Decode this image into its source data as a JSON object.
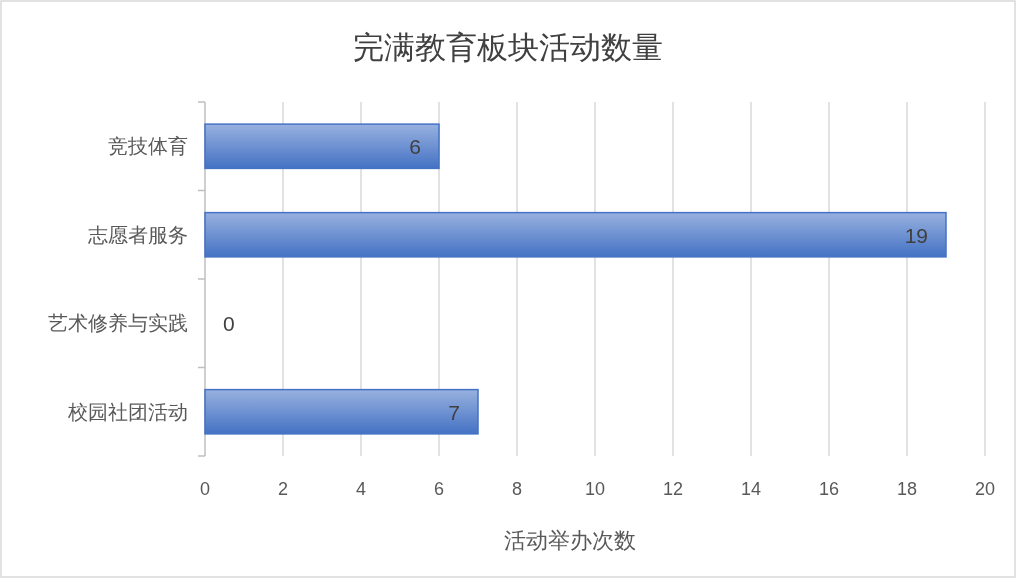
{
  "chart_data": {
    "type": "bar",
    "orientation": "horizontal",
    "title": "完满教育板块活动数量",
    "xlabel": "活动举办次数",
    "categories": [
      "竞技体育",
      "志愿者服务",
      "艺术修养与实践",
      "校园社团活动"
    ],
    "values": [
      6,
      19,
      0,
      7
    ],
    "color": "#4472c4",
    "xlim": [
      0,
      20
    ],
    "xticks": [
      0,
      2,
      4,
      6,
      8,
      10,
      12,
      14,
      16,
      18,
      20
    ],
    "grid": "x",
    "data_labels": true
  }
}
